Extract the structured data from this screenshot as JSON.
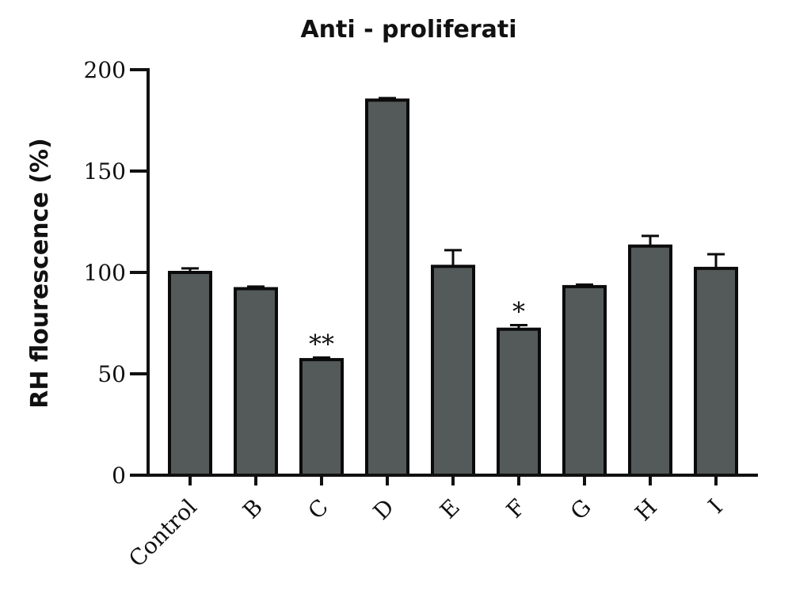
{
  "chart_data": {
    "type": "bar",
    "title": "Anti - proliferati",
    "xlabel": "",
    "ylabel": "RH flourescence (%)",
    "ylim": [
      0,
      200
    ],
    "yticks": [
      0,
      50,
      100,
      150,
      200
    ],
    "grid": false,
    "colors": {
      "bar": "#545a5a",
      "edge": "#0b0b0b"
    },
    "categories": [
      "Control",
      "B",
      "C",
      "D",
      "E",
      "F",
      "G",
      "H",
      "I"
    ],
    "values": [
      100,
      92,
      57,
      185,
      103,
      72,
      93,
      113,
      102
    ],
    "errors": [
      2,
      1,
      1,
      1,
      8,
      2,
      1,
      5,
      7
    ],
    "annotations": [
      "",
      "",
      "**",
      "",
      "",
      "*",
      "",
      "",
      ""
    ]
  }
}
